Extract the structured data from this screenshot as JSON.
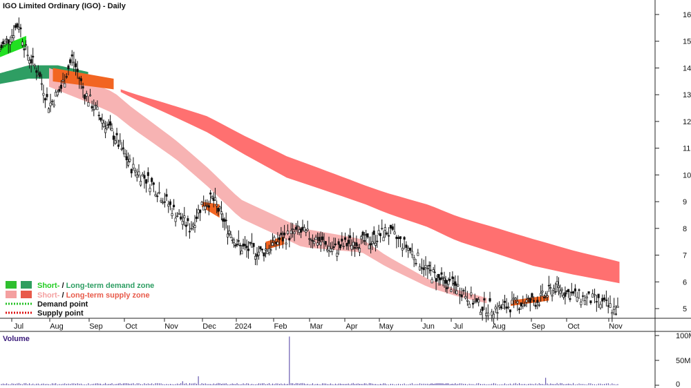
{
  "title": "IGO Limited Ordinary (IGO) - Daily",
  "volume_label": "Volume",
  "colors": {
    "short_demand": "#22e022",
    "long_demand": "#2e9e63",
    "short_supply": "#f7b3b3",
    "long_supply": "#ff7070",
    "mid_orange": "#f26522",
    "demand_point": "#22c022",
    "supply_point": "#dd1111",
    "candle": "#111111",
    "volume_bar": "#4a3aa0",
    "axis": "#222222"
  },
  "legend": {
    "row1_a": "Short-",
    "row1_b": " / ",
    "row1_c": "Long-term demand zone",
    "row2_a": "Short-",
    "row2_b": " / ",
    "row2_c": "Long-term supply zone",
    "row3": "Demand point",
    "row4": "Supply point"
  },
  "chart_data": [
    {
      "type": "candlestick",
      "title": "IGO Limited Ordinary (IGO) - Daily",
      "x_tick_labels": [
        "Jul",
        "Aug",
        "Sep",
        "Oct",
        "Nov",
        "Dec",
        "2024",
        "Feb",
        "Mar",
        "Apr",
        "May",
        "Jun",
        "Jul",
        "Aug",
        "Sep",
        "Oct",
        "Nov"
      ],
      "y_tick_labels": [
        "5",
        "6",
        "7",
        "8",
        "9",
        "10",
        "11",
        "12",
        "13",
        "14",
        "15",
        "16"
      ],
      "y_axis_side": "right",
      "ylim": [
        4.6,
        16.6
      ],
      "price_path": [
        {
          "t": 0.0,
          "price": 14.7
        },
        {
          "t": 0.3,
          "price": 15.2
        },
        {
          "t": 0.5,
          "price": 15.7
        },
        {
          "t": 0.7,
          "price": 14.6
        },
        {
          "t": 1.0,
          "price": 13.9
        },
        {
          "t": 1.3,
          "price": 12.6
        },
        {
          "t": 1.6,
          "price": 13.2
        },
        {
          "t": 1.9,
          "price": 14.4
        },
        {
          "t": 2.2,
          "price": 13.1
        },
        {
          "t": 2.6,
          "price": 12.2
        },
        {
          "t": 3.0,
          "price": 11.5
        },
        {
          "t": 3.5,
          "price": 10.3
        },
        {
          "t": 4.0,
          "price": 9.7
        },
        {
          "t": 4.6,
          "price": 8.6
        },
        {
          "t": 5.0,
          "price": 8.0
        },
        {
          "t": 5.3,
          "price": 8.9
        },
        {
          "t": 5.6,
          "price": 9.1
        },
        {
          "t": 6.0,
          "price": 8.1
        },
        {
          "t": 6.4,
          "price": 7.3
        },
        {
          "t": 7.0,
          "price": 7.1
        },
        {
          "t": 7.5,
          "price": 7.6
        },
        {
          "t": 8.0,
          "price": 7.9
        },
        {
          "t": 8.5,
          "price": 7.6
        },
        {
          "t": 9.0,
          "price": 7.2
        },
        {
          "t": 9.5,
          "price": 7.5
        },
        {
          "t": 10.0,
          "price": 7.5
        },
        {
          "t": 10.5,
          "price": 7.9
        },
        {
          "t": 11.0,
          "price": 7.3
        },
        {
          "t": 11.5,
          "price": 6.4
        },
        {
          "t": 12.0,
          "price": 6.0
        },
        {
          "t": 12.5,
          "price": 5.8
        },
        {
          "t": 13.0,
          "price": 5.1
        },
        {
          "t": 13.5,
          "price": 5.0
        },
        {
          "t": 14.0,
          "price": 5.2
        },
        {
          "t": 14.5,
          "price": 5.3
        },
        {
          "t": 15.0,
          "price": 5.8
        },
        {
          "t": 15.5,
          "price": 5.5
        },
        {
          "t": 16.0,
          "price": 5.3
        },
        {
          "t": 16.6,
          "price": 4.9
        }
      ],
      "zones": [
        {
          "name": "Long-term demand zone",
          "from_t": 0.0,
          "to_t": 2.3,
          "upper": [
            13.8,
            14.1,
            14.1,
            13.85
          ],
          "lower": [
            13.4,
            13.6,
            13.6,
            13.5
          ]
        },
        {
          "name": "Short-term demand zone",
          "from_t": 0.0,
          "to_t": 0.7,
          "upper": [
            14.8,
            15.2
          ],
          "lower": [
            14.4,
            14.8
          ]
        },
        {
          "name": "Long-term supply zone",
          "from_t": 3.2,
          "to_t": 16.6,
          "upper": [
            13.2,
            12.2,
            10.7,
            9.6,
            8.6,
            7.6,
            6.75
          ],
          "lower": [
            13.1,
            11.6,
            9.9,
            8.9,
            7.7,
            6.6,
            5.95
          ]
        },
        {
          "name": "Short-term supply zone",
          "from_t": 1.3,
          "to_t": 13.2,
          "upper": [
            14.0,
            13.1,
            11.2,
            9.1,
            8.0,
            7.6,
            6.1,
            5.4
          ],
          "lower": [
            13.3,
            12.3,
            10.5,
            8.4,
            7.3,
            7.1,
            5.8,
            5.2
          ]
        }
      ]
    },
    {
      "type": "bar",
      "title": "Volume",
      "y_tick_labels": [
        "0",
        "50M",
        "100M"
      ],
      "ylim": [
        0,
        100
      ],
      "unit": "M",
      "spikes": [
        {
          "t": 5.2,
          "value": 18
        },
        {
          "t": 7.75,
          "value": 98
        },
        {
          "t": 14.7,
          "value": 15
        },
        {
          "t": 4.8,
          "value": 8
        }
      ],
      "baseline_value": 3
    }
  ]
}
